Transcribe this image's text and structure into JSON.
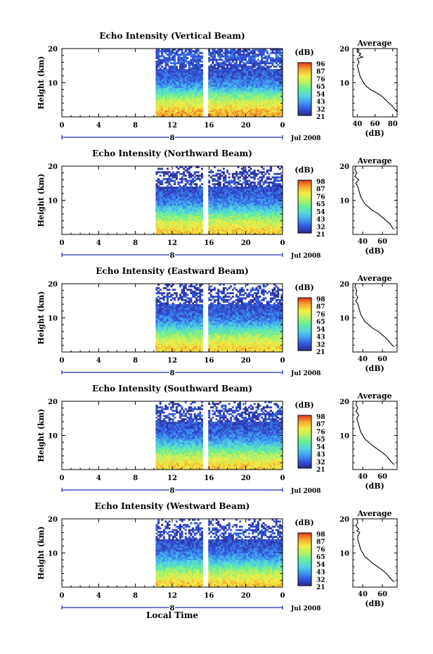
{
  "chart_data": [
    {
      "type": "heatmap",
      "title": "Echo Intensity (Vertical Beam)",
      "ylabel": "Height (km)",
      "ylim": [
        0,
        20
      ],
      "yticks": [
        10,
        20
      ],
      "xticks": [
        "0",
        "4",
        "8",
        "12",
        "16",
        "20",
        "0"
      ],
      "date_row": {
        "day": "8",
        "month_year": "Jul 2008"
      },
      "data_start_hour": 10.2,
      "data_gap_hours": [
        15.4,
        15.8
      ],
      "colorbar": {
        "unit": "(dB)",
        "ticks": [
          96,
          87,
          76,
          65,
          54,
          43,
          32,
          21
        ]
      },
      "average": {
        "title": "Average",
        "xlabel": "(dB)",
        "xticks": [
          40,
          60,
          80
        ],
        "xlim": [
          35,
          85
        ],
        "ylim": [
          0,
          20
        ],
        "yticks": [
          10,
          20
        ],
        "profile": [
          [
            1.5,
            85
          ],
          [
            2,
            83
          ],
          [
            3,
            80
          ],
          [
            4,
            76
          ],
          [
            5,
            72
          ],
          [
            6,
            68
          ],
          [
            7,
            62
          ],
          [
            8,
            55
          ],
          [
            9,
            50
          ],
          [
            10,
            47
          ],
          [
            11,
            45
          ],
          [
            12,
            43
          ],
          [
            13,
            42
          ],
          [
            14,
            41
          ],
          [
            15,
            40
          ],
          [
            16,
            42
          ],
          [
            17,
            40
          ],
          [
            17.5,
            46
          ],
          [
            18,
            42
          ],
          [
            18.5,
            44
          ],
          [
            19,
            40
          ],
          [
            19.5,
            42
          ],
          [
            20,
            40
          ]
        ]
      }
    },
    {
      "type": "heatmap",
      "title": "Echo Intensity (Northward Beam)",
      "ylabel": "Height (km)",
      "ylim": [
        0,
        20
      ],
      "yticks": [
        10,
        20
      ],
      "xticks": [
        "0",
        "4",
        "8",
        "12",
        "16",
        "20",
        "0"
      ],
      "date_row": {
        "day": "8",
        "month_year": "Jul 2008"
      },
      "data_start_hour": 10.2,
      "data_gap_hours": [
        15.4,
        15.8
      ],
      "colorbar": {
        "unit": "(dB)",
        "ticks": [
          98,
          87,
          76,
          65,
          54,
          43,
          32,
          21
        ]
      },
      "average": {
        "title": "Average",
        "xlabel": "(dB)",
        "xticks": [
          40,
          60
        ],
        "xlim": [
          30,
          75
        ],
        "ylim": [
          0,
          20
        ],
        "yticks": [
          10,
          20
        ],
        "profile": [
          [
            1.5,
            72
          ],
          [
            2,
            70
          ],
          [
            3,
            68
          ],
          [
            4,
            64
          ],
          [
            5,
            60
          ],
          [
            6,
            56
          ],
          [
            7,
            50
          ],
          [
            8,
            46
          ],
          [
            9,
            42
          ],
          [
            10,
            40
          ],
          [
            11,
            38
          ],
          [
            12,
            37
          ],
          [
            13,
            36
          ],
          [
            14,
            35
          ],
          [
            15,
            33
          ],
          [
            16,
            36
          ],
          [
            16.5,
            34
          ],
          [
            17,
            32
          ],
          [
            18,
            34
          ],
          [
            19,
            32
          ],
          [
            20,
            33
          ]
        ]
      }
    },
    {
      "type": "heatmap",
      "title": "Echo Intensity (Eastward Beam)",
      "ylabel": "Height (km)",
      "ylim": [
        0,
        20
      ],
      "yticks": [
        10,
        20
      ],
      "xticks": [
        "0",
        "4",
        "8",
        "12",
        "16",
        "20",
        "0"
      ],
      "date_row": {
        "day": "8",
        "month_year": "Jul 2008"
      },
      "data_start_hour": 10.2,
      "data_gap_hours": [
        15.4,
        15.8
      ],
      "colorbar": {
        "unit": "(dB)",
        "ticks": [
          98,
          87,
          76,
          65,
          54,
          43,
          32,
          21
        ]
      },
      "average": {
        "title": "Average",
        "xlabel": "(dB)",
        "xticks": [
          40,
          60
        ],
        "xlim": [
          30,
          75
        ],
        "ylim": [
          0,
          20
        ],
        "yticks": [
          10,
          20
        ],
        "profile": [
          [
            1.5,
            72
          ],
          [
            2,
            70
          ],
          [
            3,
            67
          ],
          [
            4,
            64
          ],
          [
            5,
            60
          ],
          [
            6,
            56
          ],
          [
            7,
            50
          ],
          [
            8,
            46
          ],
          [
            9,
            42
          ],
          [
            10,
            40
          ],
          [
            11,
            38
          ],
          [
            12,
            37
          ],
          [
            13,
            36
          ],
          [
            14,
            35
          ],
          [
            15,
            33
          ],
          [
            16,
            35
          ],
          [
            17,
            33
          ],
          [
            18,
            34
          ],
          [
            19,
            32
          ],
          [
            20,
            33
          ]
        ]
      }
    },
    {
      "type": "heatmap",
      "title": "Echo Intensity (Southward Beam)",
      "ylabel": "Height (km)",
      "ylim": [
        0,
        20
      ],
      "yticks": [
        10,
        20
      ],
      "xticks": [
        "0",
        "4",
        "8",
        "12",
        "16",
        "20",
        "0"
      ],
      "date_row": {
        "day": "8",
        "month_year": "Jul 2008"
      },
      "data_start_hour": 10.2,
      "data_gap_hours": [
        15.4,
        15.8
      ],
      "colorbar": {
        "unit": "(dB)",
        "ticks": [
          98,
          87,
          76,
          65,
          54,
          43,
          32,
          21
        ]
      },
      "average": {
        "title": "Average",
        "xlabel": "(dB)",
        "xticks": [
          40,
          60
        ],
        "xlim": [
          30,
          75
        ],
        "ylim": [
          0,
          20
        ],
        "yticks": [
          10,
          20
        ],
        "profile": [
          [
            1.5,
            72
          ],
          [
            2,
            70
          ],
          [
            3,
            67
          ],
          [
            4,
            64
          ],
          [
            5,
            60
          ],
          [
            6,
            55
          ],
          [
            7,
            50
          ],
          [
            8,
            46
          ],
          [
            9,
            42
          ],
          [
            10,
            40
          ],
          [
            11,
            38
          ],
          [
            12,
            37
          ],
          [
            13,
            36
          ],
          [
            14,
            35
          ],
          [
            15,
            34
          ],
          [
            16,
            36
          ],
          [
            17,
            33
          ],
          [
            18,
            35
          ],
          [
            19,
            33
          ],
          [
            20,
            34
          ]
        ]
      }
    },
    {
      "type": "heatmap",
      "title": "Echo Intensity (Westward Beam)",
      "ylabel": "Height (km)",
      "ylim": [
        0,
        20
      ],
      "yticks": [
        10,
        20
      ],
      "xticks": [
        "0",
        "4",
        "8",
        "12",
        "16",
        "20",
        "0"
      ],
      "date_row": {
        "day": "8",
        "month_year": "Jul 2008"
      },
      "data_start_hour": 10.2,
      "data_gap_hours": [
        15.4,
        15.8
      ],
      "colorbar": {
        "unit": "(dB)",
        "ticks": [
          98,
          87,
          76,
          65,
          54,
          43,
          32,
          21
        ]
      },
      "average": {
        "title": "Average",
        "xlabel": "(dB)",
        "xticks": [
          40,
          60
        ],
        "xlim": [
          30,
          75
        ],
        "ylim": [
          0,
          20
        ],
        "yticks": [
          10,
          20
        ],
        "profile": [
          [
            1.5,
            72
          ],
          [
            2,
            70
          ],
          [
            3,
            67
          ],
          [
            4,
            64
          ],
          [
            5,
            60
          ],
          [
            6,
            55
          ],
          [
            7,
            50
          ],
          [
            8,
            46
          ],
          [
            9,
            42
          ],
          [
            10,
            40
          ],
          [
            11,
            38
          ],
          [
            12,
            37
          ],
          [
            13,
            36
          ],
          [
            14,
            35
          ],
          [
            15,
            35
          ],
          [
            16,
            37
          ],
          [
            16.5,
            34
          ],
          [
            17,
            36
          ],
          [
            18,
            33
          ],
          [
            19,
            35
          ],
          [
            20,
            34
          ]
        ]
      }
    }
  ],
  "footer": {
    "xlabel": "Local Time"
  },
  "colors": {
    "colormap": [
      "#2b2b8f",
      "#3355dd",
      "#3fa0ee",
      "#55d6dd",
      "#66ee99",
      "#b6f064",
      "#f2ee44",
      "#f5a830",
      "#e03a1e"
    ],
    "axis": "#000000",
    "date_bar": "#1f2fb0"
  }
}
